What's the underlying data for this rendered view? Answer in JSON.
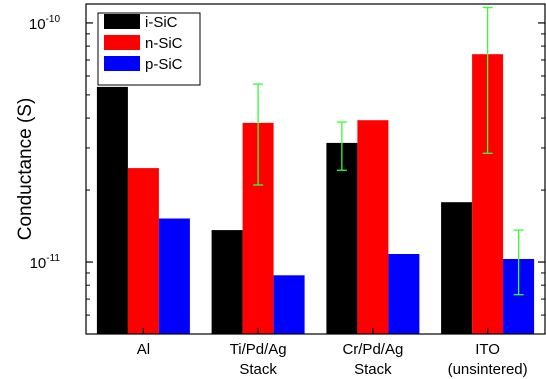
{
  "chart_data": {
    "type": "bar",
    "ylabel": "Conductance (S)",
    "xlabel": "",
    "yscale": "log",
    "ylim": [
      5e-12,
      1.2e-10
    ],
    "y_ticks": [
      {
        "value": 1e-10,
        "base": "10",
        "exp": "-10"
      },
      {
        "value": 1e-11,
        "base": "10",
        "exp": "-11"
      }
    ],
    "categories": [
      {
        "line1": "Al",
        "line2": ""
      },
      {
        "line1": "Ti/Pd/Ag",
        "line2": "Stack"
      },
      {
        "line1": "Cr/Pd/Ag",
        "line2": "Stack"
      },
      {
        "line1": "ITO",
        "line2": "(unsintered)"
      }
    ],
    "series": [
      {
        "name": "i-SiC",
        "color": "#000000",
        "values": [
          5.4e-11,
          1.36e-11,
          3.15e-11,
          1.78e-11
        ],
        "err_low": [
          null,
          null,
          2.42e-11,
          null
        ],
        "err_high": [
          null,
          null,
          3.85e-11,
          null
        ]
      },
      {
        "name": "n-SiC",
        "color": "#ff0000",
        "values": [
          2.47e-11,
          3.82e-11,
          3.92e-11,
          7.4e-11
        ],
        "err_low": [
          null,
          2.1e-11,
          null,
          2.85e-11
        ],
        "err_high": [
          null,
          5.55e-11,
          null,
          1.16e-10
        ]
      },
      {
        "name": "p-SiC",
        "color": "#0000ff",
        "values": [
          1.52e-11,
          8.8e-12,
          1.08e-11,
          1.03e-11
        ],
        "err_low": [
          null,
          null,
          null,
          7.3e-12
        ],
        "err_high": [
          null,
          null,
          null,
          1.36e-11
        ]
      }
    ],
    "error_bar_color": "#33ff33",
    "legend_position": "top-left",
    "grid": false
  }
}
